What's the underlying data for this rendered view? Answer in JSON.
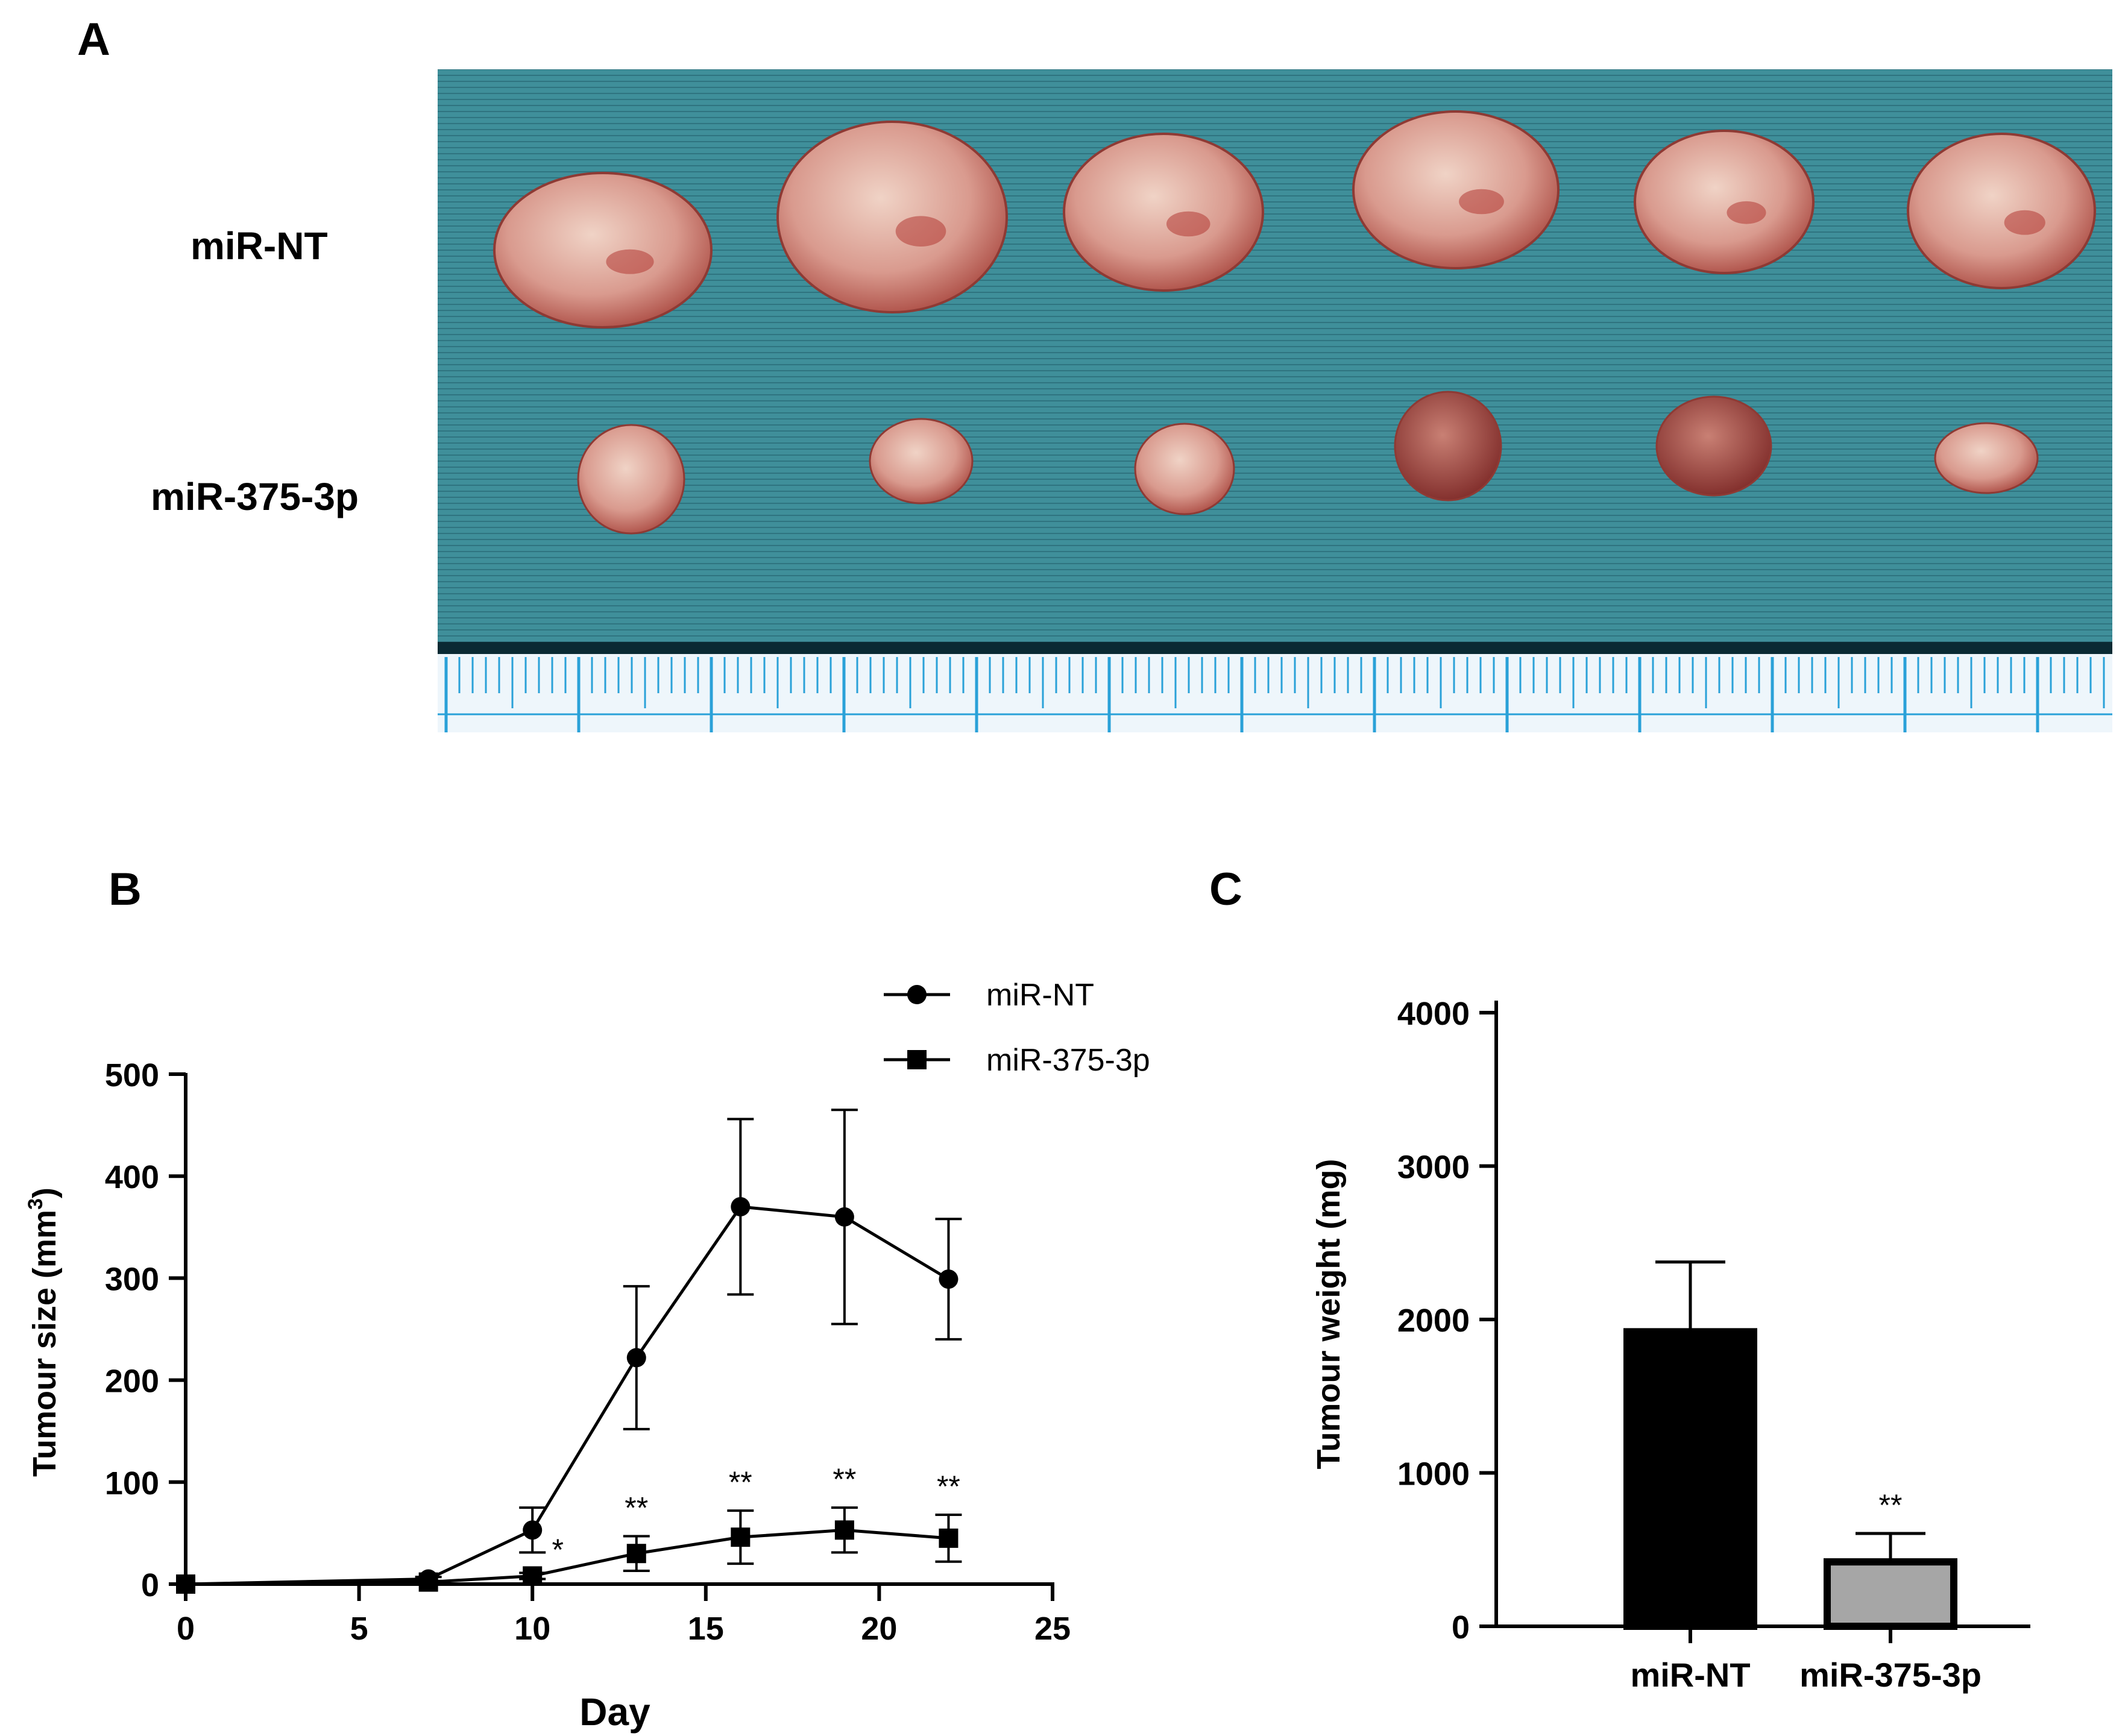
{
  "panels": {
    "a": {
      "letter": "A",
      "row_labels": [
        "miR-NT",
        "miR-375-3p"
      ]
    },
    "b": {
      "letter": "B"
    },
    "c": {
      "letter": "C"
    }
  },
  "colors": {
    "drape": "#3f8f9a",
    "ruler": "#eef6fb",
    "ruler_ticks": "#2aa1d8",
    "tumour_large": "#d99a8e",
    "tumour_red": "#b23a35",
    "bar_nt": "#000000",
    "bar_375": "#a6a6a6"
  },
  "chart_data": [
    {
      "type": "line",
      "xlabel": "Day",
      "ylabel": "Tumour size (mm",
      "ylabel_sup": "3",
      "ylabel_end": ")",
      "xlim": [
        0,
        25
      ],
      "ylim": [
        0,
        500
      ],
      "xticks": [
        "0",
        "5",
        "10",
        "15",
        "20",
        "25"
      ],
      "yticks": [
        "0",
        "100",
        "200",
        "300",
        "400",
        "500"
      ],
      "legend_position": "top-right",
      "series": [
        {
          "name": "miR-NT",
          "marker": "circle",
          "x": [
            0,
            7,
            10,
            13,
            16,
            19,
            22
          ],
          "y": [
            0,
            5,
            53,
            222,
            370,
            360,
            299
          ],
          "err": [
            0,
            2,
            22,
            70,
            86,
            105,
            59
          ]
        },
        {
          "name": "miR-375-3p",
          "marker": "square",
          "x": [
            0,
            7,
            10,
            13,
            16,
            19,
            22
          ],
          "y": [
            0,
            2,
            8,
            30,
            46,
            53,
            45
          ],
          "err": [
            0,
            1,
            3,
            17,
            26,
            22,
            23
          ]
        }
      ],
      "annotations": [
        {
          "x": 10,
          "text": "*"
        },
        {
          "x": 13,
          "text": "**"
        },
        {
          "x": 16,
          "text": "**"
        },
        {
          "x": 19,
          "text": "**"
        },
        {
          "x": 22,
          "text": "**"
        }
      ]
    },
    {
      "type": "bar",
      "categories": [
        "miR-NT",
        "miR-375-3p"
      ],
      "values": [
        1920,
        420
      ],
      "err": [
        455,
        185
      ],
      "ylabel": "Tumour weight (mg)",
      "xlabel": "",
      "ylim": [
        0,
        4000
      ],
      "yticks": [
        "0",
        "1000",
        "2000",
        "3000",
        "4000"
      ],
      "annotations": [
        {
          "category": "miR-375-3p",
          "text": "**"
        }
      ]
    }
  ]
}
